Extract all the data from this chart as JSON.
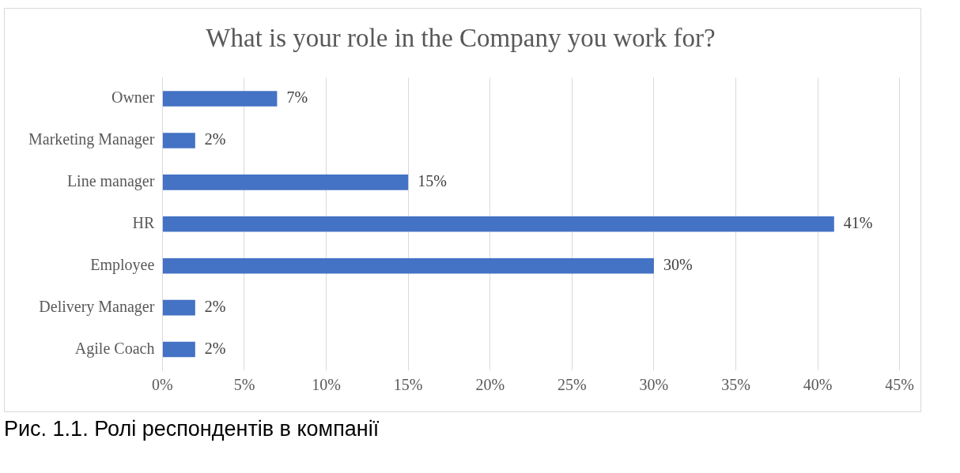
{
  "chart_data": {
    "type": "bar",
    "orientation": "horizontal",
    "title": "What is your role in the Company you work for?",
    "categories": [
      "Owner",
      "Marketing Manager",
      "Line manager",
      "HR",
      "Employee",
      "Delivery Manager",
      "Agile Coach"
    ],
    "values": [
      7,
      2,
      15,
      41,
      30,
      2,
      2
    ],
    "color": "#4472c4",
    "value_labels": [
      "7%",
      "2%",
      "15%",
      "41%",
      "30%",
      "2%",
      "2%"
    ],
    "xlim": [
      0,
      45
    ],
    "xticks": [
      {
        "value": 0,
        "label": "0%"
      },
      {
        "value": 5,
        "label": "5%"
      },
      {
        "value": 10,
        "label": "10%"
      },
      {
        "value": 15,
        "label": "15%"
      },
      {
        "value": 20,
        "label": "20%"
      },
      {
        "value": 25,
        "label": "25%"
      },
      {
        "value": 30,
        "label": "30%"
      },
      {
        "value": 35,
        "label": "35%"
      },
      {
        "value": 40,
        "label": "40%"
      },
      {
        "value": 45,
        "label": "45%"
      }
    ],
    "grid": "x",
    "legend": false,
    "annotations": [
      "Рис. 1.1. Ролі респондентів в компанії"
    ]
  }
}
